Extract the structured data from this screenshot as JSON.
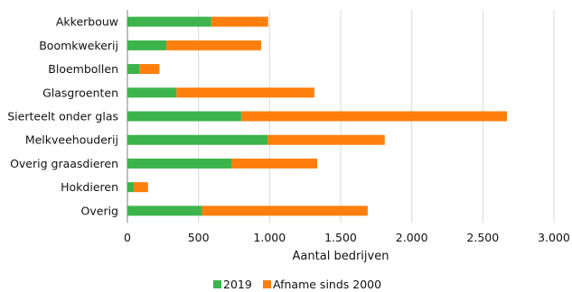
{
  "chart_data": {
    "type": "bar",
    "orientation": "horizontal",
    "stacked": true,
    "categories": [
      "Akkerbouw",
      "Boomkwekerij",
      "Bloembollen",
      "Glasgroenten",
      "Sierteelt onder glas",
      "Melkveehouderij",
      "Overig graasdieren",
      "Hokdieren",
      "Overig"
    ],
    "series": [
      {
        "name": "2019",
        "color": "#3cb44b",
        "values": [
          590,
          275,
          85,
          345,
          800,
          985,
          735,
          45,
          525
        ]
      },
      {
        "name": "Afname sinds 2000",
        "color": "#ff7f0e",
        "values": [
          400,
          665,
          140,
          970,
          1870,
          825,
          600,
          100,
          1165
        ]
      }
    ],
    "xlabel": "Aantal bedrijven",
    "xlim": [
      0,
      3000
    ],
    "xticks": [
      0,
      500,
      1000,
      1500,
      2000,
      2500,
      3000
    ],
    "xtick_labels": [
      "0",
      "500",
      "1.000",
      "1.500",
      "2.000",
      "2.500",
      "3.000"
    ],
    "grid": "vertical",
    "legend_position": "bottom-center"
  }
}
